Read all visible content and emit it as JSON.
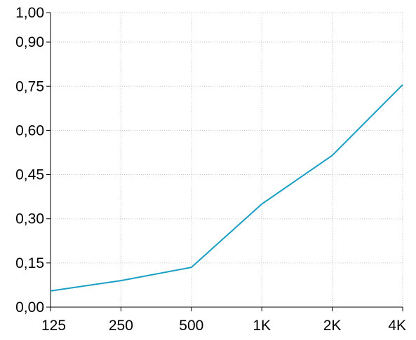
{
  "chart_data": {
    "type": "line",
    "title": "",
    "xlabel": "",
    "ylabel": "",
    "categories": [
      "125",
      "250",
      "500",
      "1K",
      "2K",
      "4K"
    ],
    "y_tick_labels": [
      "0,00",
      "0,15",
      "0,30",
      "0,45",
      "0,60",
      "0,75",
      "0,90",
      "1,00"
    ],
    "y_ticks": [
      0.0,
      0.15,
      0.3,
      0.45,
      0.6,
      0.75,
      0.9,
      1.0
    ],
    "ylim": [
      0.0,
      1.0
    ],
    "grid": true,
    "series": [
      {
        "values": [
          0.055,
          0.09,
          0.135,
          0.35,
          0.515,
          0.755
        ],
        "color": "#1a9fc4"
      }
    ]
  }
}
